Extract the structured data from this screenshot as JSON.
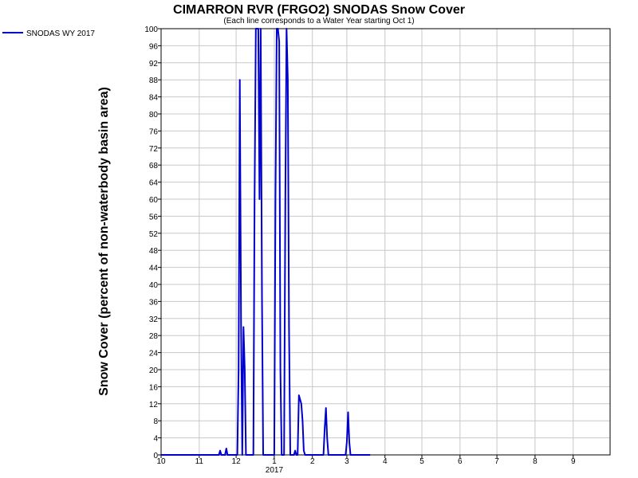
{
  "chart_data": {
    "type": "line",
    "title": "CIMARRON RVR (FRGO2) SNODAS Snow Cover",
    "subtitle": "(Each line corresponds to a Water Year starting Oct 1)",
    "xlabel": "",
    "ylabel": "Snow Cover (percent of non-waterbody basin area)",
    "ylim": [
      0,
      100
    ],
    "yticks": [
      0,
      4,
      8,
      12,
      16,
      20,
      24,
      28,
      32,
      36,
      40,
      44,
      48,
      52,
      56,
      60,
      64,
      68,
      72,
      76,
      80,
      84,
      88,
      92,
      96,
      100
    ],
    "xlim": [
      "2016-10-01",
      "2017-09-30"
    ],
    "xticks": [
      {
        "label": "10",
        "date": "2016-10-01"
      },
      {
        "label": "11",
        "date": "2016-11-01"
      },
      {
        "label": "12",
        "date": "2016-12-01"
      },
      {
        "label": "1",
        "date": "2017-01-01"
      },
      {
        "label": "2",
        "date": "2017-02-01"
      },
      {
        "label": "3",
        "date": "2017-03-01"
      },
      {
        "label": "4",
        "date": "2017-04-01"
      },
      {
        "label": "5",
        "date": "2017-05-01"
      },
      {
        "label": "6",
        "date": "2017-06-01"
      },
      {
        "label": "7",
        "date": "2017-07-01"
      },
      {
        "label": "8",
        "date": "2017-08-01"
      },
      {
        "label": "9",
        "date": "2017-09-01"
      }
    ],
    "year_label": "2017",
    "grid": true,
    "legend_position": "top-left",
    "series": [
      {
        "name": "SNODAS WY 2017",
        "color": "#0000cc",
        "points": [
          [
            "2016-10-01",
            0
          ],
          [
            "2016-11-17",
            0
          ],
          [
            "2016-11-18",
            1
          ],
          [
            "2016-11-19",
            0
          ],
          [
            "2016-11-22",
            0
          ],
          [
            "2016-11-23",
            1.5
          ],
          [
            "2016-11-24",
            0
          ],
          [
            "2016-12-02",
            0
          ],
          [
            "2016-12-03",
            20
          ],
          [
            "2016-12-04",
            88
          ],
          [
            "2016-12-05",
            30
          ],
          [
            "2016-12-06",
            0
          ],
          [
            "2016-12-07",
            30
          ],
          [
            "2016-12-08",
            20
          ],
          [
            "2016-12-09",
            0
          ],
          [
            "2016-12-15",
            0
          ],
          [
            "2016-12-16",
            60
          ],
          [
            "2016-12-17",
            100
          ],
          [
            "2016-12-18",
            100
          ],
          [
            "2016-12-19",
            100
          ],
          [
            "2016-12-20",
            60
          ],
          [
            "2016-12-21",
            100
          ],
          [
            "2016-12-22",
            37
          ],
          [
            "2016-12-23",
            0
          ],
          [
            "2017-01-01",
            0
          ],
          [
            "2017-01-02",
            60
          ],
          [
            "2017-01-03",
            100
          ],
          [
            "2017-01-04",
            100
          ],
          [
            "2017-01-05",
            97
          ],
          [
            "2017-01-06",
            20
          ],
          [
            "2017-01-07",
            0
          ],
          [
            "2017-01-09",
            0
          ],
          [
            "2017-01-10",
            60
          ],
          [
            "2017-01-11",
            100
          ],
          [
            "2017-01-12",
            88
          ],
          [
            "2017-01-13",
            30
          ],
          [
            "2017-01-14",
            0
          ],
          [
            "2017-01-17",
            0
          ],
          [
            "2017-01-18",
            1
          ],
          [
            "2017-01-19",
            0
          ],
          [
            "2017-01-20",
            0
          ],
          [
            "2017-01-21",
            14
          ],
          [
            "2017-01-22",
            13
          ],
          [
            "2017-01-23",
            12
          ],
          [
            "2017-01-24",
            8
          ],
          [
            "2017-01-25",
            1
          ],
          [
            "2017-01-26",
            0
          ],
          [
            "2017-02-10",
            0
          ],
          [
            "2017-02-11",
            6
          ],
          [
            "2017-02-12",
            11
          ],
          [
            "2017-02-13",
            4
          ],
          [
            "2017-02-14",
            0
          ],
          [
            "2017-02-28",
            0
          ],
          [
            "2017-03-01",
            3
          ],
          [
            "2017-03-02",
            10
          ],
          [
            "2017-03-03",
            3
          ],
          [
            "2017-03-04",
            0
          ],
          [
            "2017-03-20",
            0
          ]
        ]
      }
    ]
  }
}
